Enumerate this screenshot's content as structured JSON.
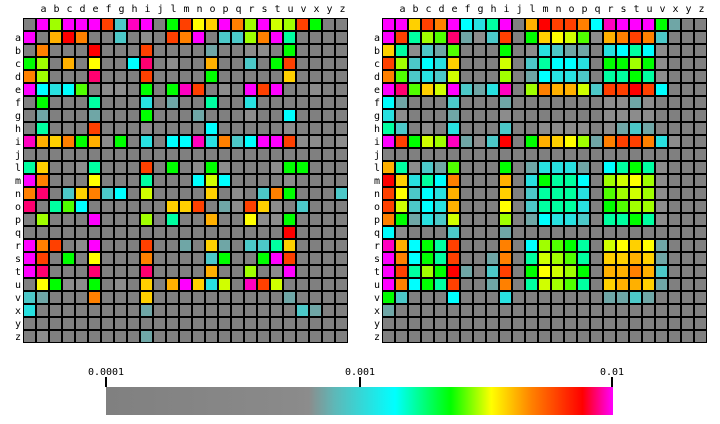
{
  "chart_data": {
    "type": "heatmap",
    "title": "",
    "row_labels": [
      "",
      "a",
      "b",
      "c",
      "d",
      "e",
      "f",
      "g",
      "h",
      "i",
      "j",
      "l",
      "m",
      "n",
      "o",
      "p",
      "q",
      "r",
      "s",
      "t",
      "u",
      "v",
      "x",
      "y",
      "z"
    ],
    "col_labels": [
      "",
      "a",
      "b",
      "c",
      "d",
      "e",
      "f",
      "g",
      "h",
      "i",
      "j",
      "l",
      "m",
      "n",
      "o",
      "p",
      "q",
      "r",
      "s",
      "t",
      "u",
      "v",
      "x",
      "y",
      "z"
    ],
    "color_legend": {
      ".": "#808080",
      "L": "#8c8c8c",
      "T": "#6fa6a6",
      "t": "#4cc8c8",
      "c": "#28e0e0",
      "C": "#00ffff",
      "S": "#00ffa0",
      "G": "#00ff00",
      "g": "#50ff00",
      "Y": "#a0ff00",
      "y": "#d0ff00",
      "U": "#ffff00",
      "O": "#ffd000",
      "o": "#ffb000",
      "A": "#ff8000",
      "R": "#ff4000",
      "r": "#ff0000",
      "P": "#ff0070",
      "m": "#ff00c0",
      "M": "#ff00ff"
    },
    "colorbar": {
      "scale": "log",
      "range": [
        0.0001,
        0.01
      ],
      "ticks": [
        {
          "value": 0.0001,
          "label": "0.0001"
        },
        {
          "value": 0.001,
          "label": "0.001"
        },
        {
          "value": 0.01,
          "label": "0.01"
        }
      ]
    },
    "panels": [
      {
        "name": "left",
        "rows": [
          ".MYMMMRtmM.GRUOMAYMyYRG..",
          "M.orA..t.L.RAM.ttYAMS....",
          ".A...r...R....T..LL.G....",
          "GY.o.U..CP.L..o..t.GR....",
          "AY...P...R....G.....O....",
          "MCcCg.LL.G.GmR.L.MRM..L..",
          ".G...S...c.T..S..c.......",
          ".T...T...G...T...L..C....",
          ".S...R...L....C.....L....",
          "moOAGoLG.c.CCmcAtCMMRLL.L",
          ".........................",
          "SO..LS...R.G.LGL...LGG...",
          "MA...U...S...CyC....L....",
          "AP.tOAtC.y....O.L.tAG...t",
          "P.SgC......OOR.TLROL.t...",
          ".Y...M...Y.S..o..ULLG....",
          "....................r....",
          "MAR.LM...R..T.OT.ttSO....",
          "MR.G.U...A....tG..GMR....",
          "MP...P...P....o..Y.LM....",
          ".UGLLG.L.O.oMOcy.mRy.....",
          "tT...A...O..........T....",
          "c........T...........tT..",
          ".........................",
          ".L.......T..............."
        ]
      },
      {
        "name": "right",
        "rows": [
          "MMORAMCcSM.orRRACmMMMGT..",
          "MRSYgPTLtR.GOUygLoARAt...",
          "OSLtTg...G.LctTT.cCSCL...",
          "RYtCcO...y.tSCCc.GGYGL...",
          "Agtcty...Y.TCcct.SSGSL...",
          "MPgOyMtTcm.YAooytRRrRC...",
          "CT...t...T.......LLTL....",
          "cL...T...L.......LLLL....",
          "St.L.c...t..LLLL.LTtT....",
          "MRGyYmTLtr.GoOUYTARRAcL..",
          ".........................",
          "oSLtTg...G.TcccT.CSGSL...",
          "rOcSCA...o.cGSSC.YyUYL...",
          "RUtCco...O.tSSSc.gYyYL...",
          "RytCco...U.tSSSc.GgYYL...",
          "AGTcty...Y.TCcct.SSGSL...",
          "CL...t...T...............",
          "moCGSR...A.CYgGS.yUOUT...",
          "MACGSR..TA.SyYgS.OOoOT...",
          "MRSYGrT.tR.GUyYG.ooAot...",
          "MACGSR..TA.SyYgS.OooOT...",
          "Gt...C...c.......TTtT....",
          "T........................",
          ".........................",
          "........................."
        ]
      }
    ]
  }
}
